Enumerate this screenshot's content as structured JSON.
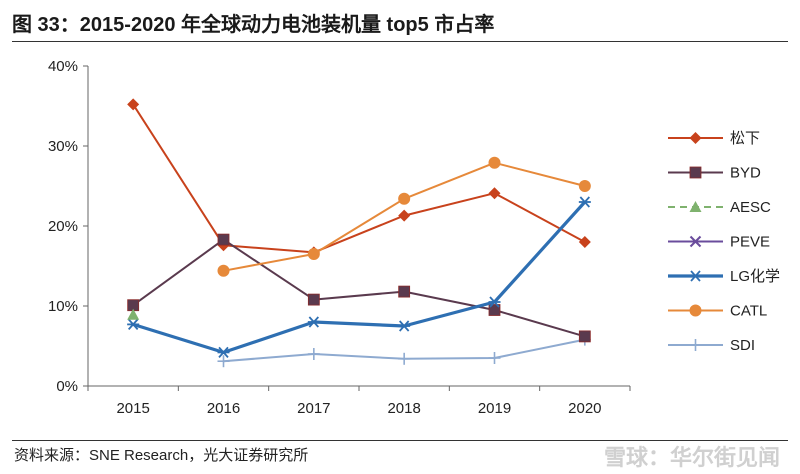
{
  "title": "图 33：2015-2020 年全球动力电池装机量 top5 市占率",
  "source": "资料来源：SNE Research，光大证券研究所",
  "watermark": "雪球：华尔街见闻",
  "chart_data": {
    "type": "line",
    "title": "2015-2020 年全球动力电池装机量 top5 市占率",
    "xlabel": "",
    "ylabel": "",
    "ylim": [
      0,
      40
    ],
    "yticks": [
      0,
      10,
      20,
      30,
      40
    ],
    "ytick_labels": [
      "0%",
      "10%",
      "20%",
      "30%",
      "40%"
    ],
    "categories": [
      "2015",
      "2016",
      "2017",
      "2018",
      "2019",
      "2020"
    ],
    "legend_position": "right",
    "grid": false,
    "series": [
      {
        "name": "松下",
        "color": "#c8421c",
        "marker": "diamond",
        "dash": "",
        "values": [
          35.2,
          17.6,
          16.7,
          21.3,
          24.1,
          18.0
        ]
      },
      {
        "name": "BYD",
        "color": "#5a3a4e",
        "marker": "square",
        "dash": "",
        "values": [
          10.1,
          18.3,
          10.8,
          11.8,
          9.5,
          6.2
        ]
      },
      {
        "name": "AESC",
        "color": "#7fb26e",
        "marker": "triangle",
        "dash": "dash",
        "values": [
          8.9,
          null,
          null,
          null,
          null,
          null
        ]
      },
      {
        "name": "PEVE",
        "color": "#6a4c9c",
        "marker": "x",
        "dash": "",
        "values": [
          null,
          null,
          null,
          null,
          null,
          null
        ]
      },
      {
        "name": "LG化学",
        "color": "#2e6fb2",
        "marker": "asterisk",
        "dash": "",
        "values": [
          7.7,
          4.2,
          8.0,
          7.5,
          10.5,
          23.0
        ]
      },
      {
        "name": "CATL",
        "color": "#e6893a",
        "marker": "circle",
        "dash": "",
        "values": [
          null,
          14.4,
          16.5,
          23.4,
          27.9,
          25.0
        ]
      },
      {
        "name": "SDI",
        "color": "#8eaad0",
        "marker": "plus",
        "dash": "",
        "values": [
          null,
          3.1,
          4.0,
          3.4,
          3.5,
          5.8
        ]
      }
    ]
  }
}
